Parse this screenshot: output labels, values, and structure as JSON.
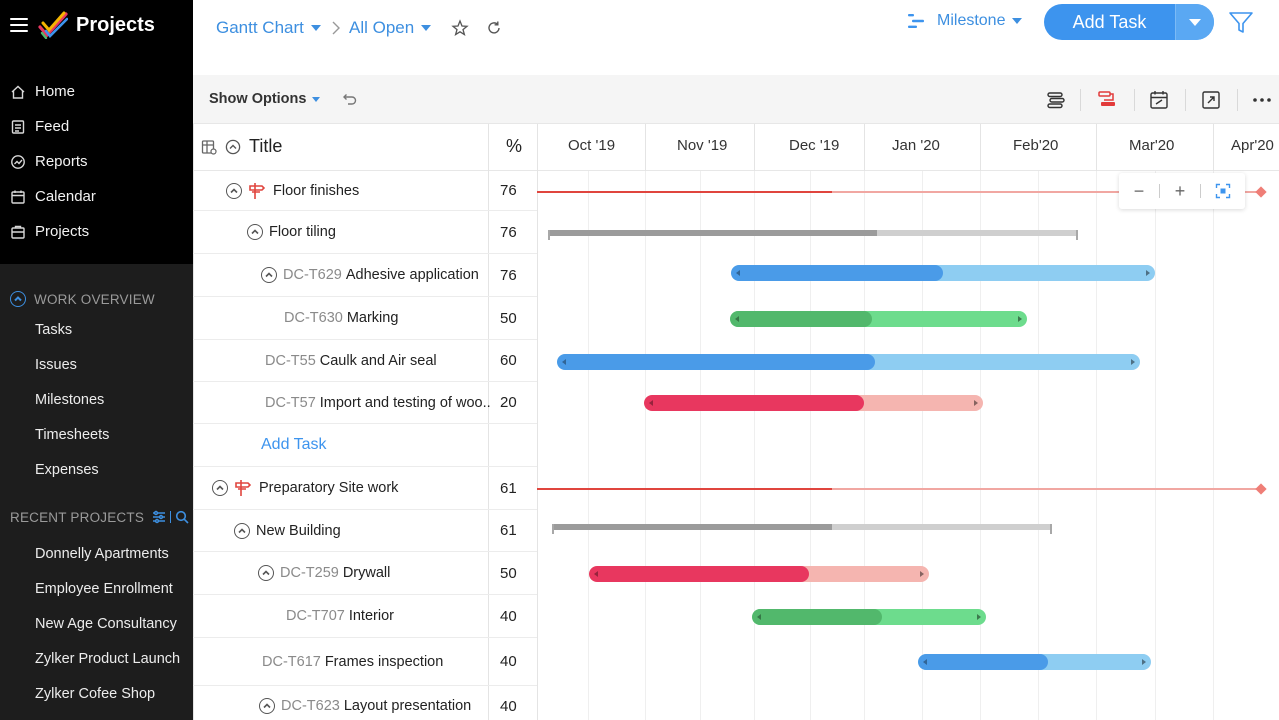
{
  "app": {
    "title": "Projects"
  },
  "nav": [
    {
      "label": "Home",
      "icon": "home-icon"
    },
    {
      "label": "Feed",
      "icon": "feed-icon"
    },
    {
      "label": "Reports",
      "icon": "reports-icon"
    },
    {
      "label": "Calendar",
      "icon": "calendar-icon"
    },
    {
      "label": "Projects",
      "icon": "projects-icon"
    }
  ],
  "work_overview": {
    "heading": "WORK OVERVIEW",
    "items": [
      "Tasks",
      "Issues",
      "Milestones",
      "Timesheets",
      "Expenses"
    ]
  },
  "recent_projects": {
    "heading": "RECENT PROJECTS",
    "items": [
      "Donnelly Apartments",
      "Employee Enrollment",
      "New Age Consultancy",
      "Zylker Product Launch",
      "Zylker Cofee Shop"
    ]
  },
  "header": {
    "view": "Gantt Chart",
    "filter": "All Open",
    "milestone": "Milestone",
    "add_task": "Add Task"
  },
  "toolbar": {
    "show_options": "Show Options"
  },
  "grid": {
    "title_header": "Title",
    "pct_header": "%",
    "months": [
      "Oct '19",
      "Nov '19",
      "Dec '19",
      "Jan '20",
      "Feb'20",
      "Mar'20",
      "Apr'20"
    ]
  },
  "rows": [
    {
      "id": "",
      "name": "Floor finishes",
      "pct": "76",
      "kind": "milestone"
    },
    {
      "id": "",
      "name": "Floor tiling",
      "pct": "76",
      "kind": "tasklist"
    },
    {
      "id": "DC-T629",
      "name": "Adhesive application",
      "pct": "76",
      "kind": "task",
      "color": "blue"
    },
    {
      "id": "DC-T630",
      "name": "Marking",
      "pct": "50",
      "kind": "task",
      "color": "green"
    },
    {
      "id": "DC-T55",
      "name": "Caulk and Air seal",
      "pct": "60",
      "kind": "task",
      "color": "blue"
    },
    {
      "id": "DC-T57",
      "name": "Import and testing of woo..",
      "pct": "20",
      "kind": "task",
      "color": "red"
    },
    {
      "id": "",
      "name": "Add Task",
      "pct": "",
      "kind": "add"
    },
    {
      "id": "",
      "name": "Preparatory Site work",
      "pct": "61",
      "kind": "milestone"
    },
    {
      "id": "",
      "name": "New Building",
      "pct": "61",
      "kind": "tasklist"
    },
    {
      "id": "DC-T259",
      "name": "Drywall",
      "pct": "50",
      "kind": "task",
      "color": "red"
    },
    {
      "id": "DC-T707",
      "name": "Interior",
      "pct": "40",
      "kind": "task",
      "color": "green"
    },
    {
      "id": "DC-T617",
      "name": "Frames inspection",
      "pct": "40",
      "kind": "task",
      "color": "blue"
    },
    {
      "id": "DC-T623",
      "name": "Layout presentation",
      "pct": "40",
      "kind": "task",
      "color": "blue"
    }
  ],
  "colors": {
    "blue_done": "#4a9be8",
    "blue_rest": "#8ecdf2",
    "green_done": "#52b86c",
    "green_rest": "#6ddc8d",
    "red_done": "#e8375f",
    "red_rest": "#f5b5b0",
    "accent": "#3d94ee"
  }
}
